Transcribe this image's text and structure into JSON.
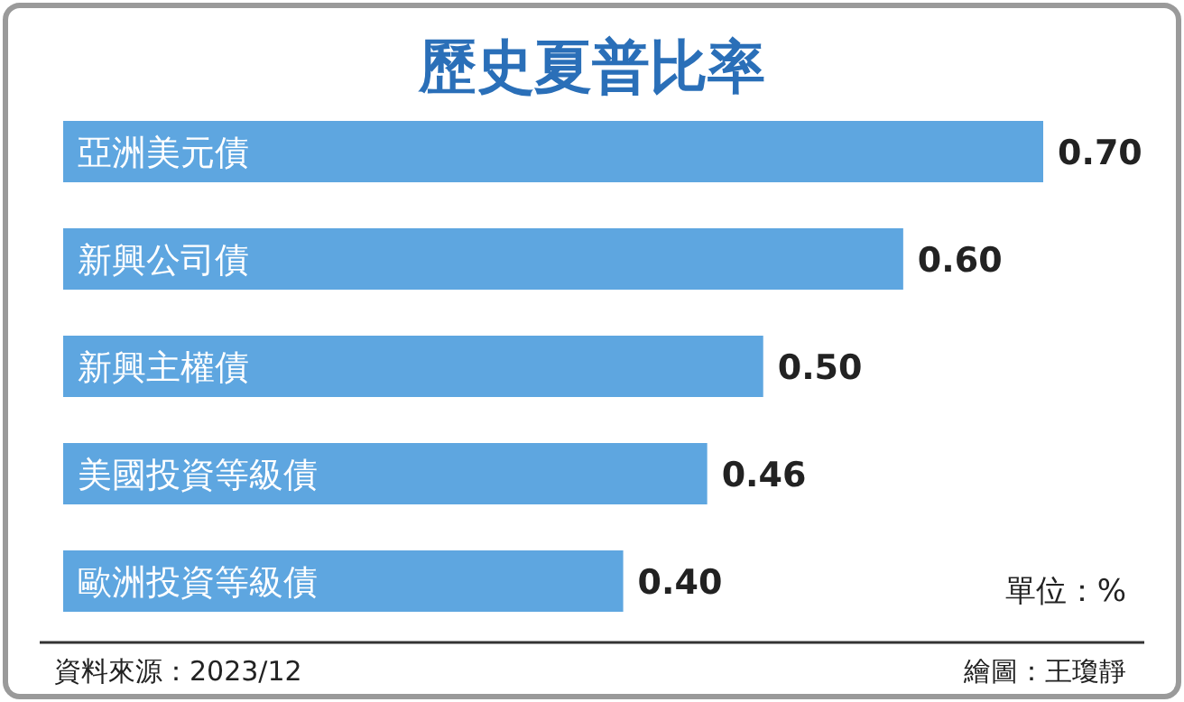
{
  "chart_data": {
    "type": "bar",
    "orientation": "horizontal",
    "title": "歷史夏普比率",
    "categories": [
      "亞洲美元債",
      "新興公司債",
      "新興主權債",
      "美國投資等級債",
      "歐洲投資等級債"
    ],
    "values": [
      0.7,
      0.6,
      0.5,
      0.46,
      0.4
    ],
    "value_labels": [
      "0.70",
      "0.60",
      "0.50",
      "0.46",
      "0.40"
    ],
    "color": "#5ea6e0",
    "annotations": [
      "單位：%",
      "資料來源：2023/12",
      "繪圖：王瓊靜"
    ]
  }
}
